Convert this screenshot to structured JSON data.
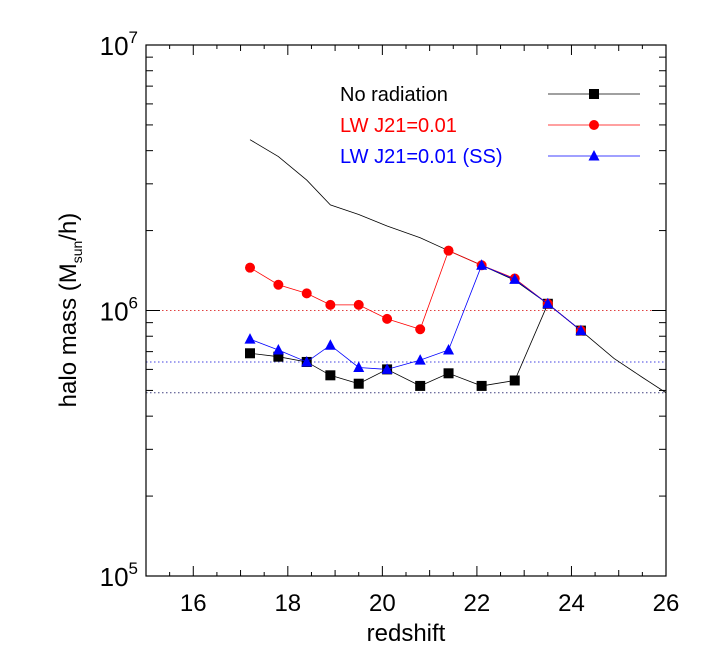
{
  "chart_data": {
    "type": "line",
    "xlabel": "redshift",
    "ylabel_main": "halo mass (M",
    "ylabel_sub": "sun",
    "ylabel_tail": "/h)",
    "xlim": [
      15,
      26
    ],
    "ylim": [
      100000,
      10000000
    ],
    "yscale": "log",
    "x_ticks": [
      {
        "value": 16,
        "label": "16"
      },
      {
        "value": 18,
        "label": "18"
      },
      {
        "value": 20,
        "label": "20"
      },
      {
        "value": 22,
        "label": "22"
      },
      {
        "value": 24,
        "label": "24"
      },
      {
        "value": 26,
        "label": "26"
      }
    ],
    "y_ticks": [
      {
        "value": 100000,
        "base": "10",
        "exp": "5"
      },
      {
        "value": 1000000,
        "base": "10",
        "exp": "6"
      },
      {
        "value": 10000000,
        "base": "10",
        "exp": "7"
      }
    ],
    "legend_position": "top-right",
    "grid": false,
    "reference_lines": [
      {
        "y": 1000000,
        "color": "#e04040"
      },
      {
        "y": 640000,
        "color": "#4040e0"
      },
      {
        "y": 490000,
        "color": "#404080"
      }
    ],
    "thin_line": {
      "color": "#000000",
      "x": [
        17.2,
        17.8,
        18.4,
        18.9,
        19.5,
        20.1,
        20.8,
        21.4,
        22.1,
        22.8,
        23.5,
        24.2,
        24.9,
        25.5,
        26.0
      ],
      "y": [
        4400000,
        3800000,
        3100000,
        2500000,
        2300000,
        2080000,
        1880000,
        1680000,
        1480000,
        1300000,
        1060000,
        840000,
        660000,
        560000,
        490000
      ]
    },
    "series": [
      {
        "name": "No radiation",
        "color": "#000000",
        "marker": "square",
        "x": [
          17.2,
          17.8,
          18.4,
          18.9,
          19.5,
          20.1,
          20.8,
          21.4,
          22.1,
          22.8,
          23.5,
          24.2
        ],
        "y": [
          690000,
          670000,
          640000,
          570000,
          530000,
          600000,
          520000,
          580000,
          520000,
          545000,
          1060000,
          840000
        ]
      },
      {
        "name": "LW J21=0.01",
        "color": "#ff0000",
        "marker": "circle",
        "x": [
          17.2,
          17.8,
          18.4,
          18.9,
          19.5,
          20.1,
          20.8,
          21.4,
          22.1,
          22.8,
          23.5,
          24.2
        ],
        "y": [
          1450000,
          1250000,
          1160000,
          1050000,
          1050000,
          930000,
          850000,
          1680000,
          1480000,
          1320000,
          1060000,
          840000
        ]
      },
      {
        "name": "LW J21=0.01 (SS)",
        "color": "#0000ff",
        "marker": "triangle",
        "x": [
          17.2,
          17.8,
          18.4,
          18.9,
          19.5,
          20.1,
          20.8,
          21.4,
          22.1,
          22.8,
          23.5,
          24.2
        ],
        "y": [
          780000,
          710000,
          640000,
          740000,
          610000,
          600000,
          650000,
          710000,
          1480000,
          1310000,
          1060000,
          840000
        ]
      }
    ]
  }
}
